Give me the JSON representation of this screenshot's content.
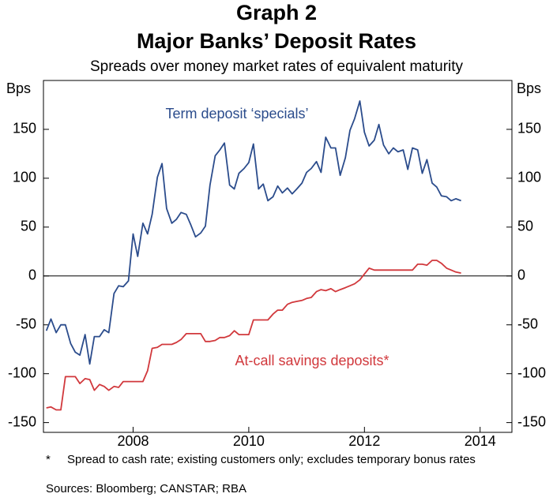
{
  "chart_data": {
    "type": "line",
    "title": "Graph 2",
    "subtitle": "Major Banks’ Deposit Rates",
    "description": "Spreads over money market rates of equivalent maturity",
    "ylabel": "Bps",
    "y2label": "Bps",
    "x": [
      2006.5,
      2006.58,
      2006.67,
      2006.75,
      2006.83,
      2006.92,
      2007,
      2007.08,
      2007.17,
      2007.25,
      2007.33,
      2007.42,
      2007.5,
      2007.58,
      2007.67,
      2007.75,
      2007.83,
      2007.92,
      2008,
      2008.08,
      2008.17,
      2008.25,
      2008.33,
      2008.42,
      2008.5,
      2008.58,
      2008.67,
      2008.75,
      2008.83,
      2008.92,
      2009,
      2009.08,
      2009.17,
      2009.25,
      2009.33,
      2009.42,
      2009.5,
      2009.58,
      2009.67,
      2009.75,
      2009.83,
      2009.92,
      2010,
      2010.08,
      2010.17,
      2010.25,
      2010.33,
      2010.42,
      2010.5,
      2010.58,
      2010.67,
      2010.75,
      2010.83,
      2010.92,
      2011,
      2011.08,
      2011.17,
      2011.25,
      2011.33,
      2011.42,
      2011.5,
      2011.58,
      2011.67,
      2011.75,
      2011.83,
      2011.92,
      2012,
      2012.08,
      2012.17,
      2012.25,
      2012.33,
      2012.42,
      2012.5,
      2012.58,
      2012.67,
      2012.75,
      2012.83,
      2012.92,
      2013,
      2013.08,
      2013.17,
      2013.25,
      2013.33,
      2013.42,
      2013.5,
      2013.58,
      2013.67
    ],
    "series": [
      {
        "name": "Term deposit ‘specials’",
        "color": "#2b4c8c",
        "values": [
          -56,
          -44,
          -58,
          -50,
          -50,
          -69,
          -78,
          -81,
          -60,
          -90,
          -62,
          -62,
          -55,
          -58,
          -18,
          -10,
          -11,
          -5,
          43,
          20,
          54,
          43,
          63,
          101,
          115,
          69,
          54,
          58,
          65,
          63,
          52,
          40,
          44,
          51,
          93,
          123,
          129,
          136,
          93,
          89,
          105,
          110,
          116,
          135,
          89,
          94,
          77,
          81,
          92,
          85,
          90,
          84,
          89,
          95,
          106,
          110,
          117,
          106,
          142,
          131,
          131,
          103,
          121,
          149,
          161,
          179,
          147,
          133,
          139,
          155,
          134,
          125,
          131,
          127,
          129,
          109,
          131,
          129,
          105,
          119,
          95,
          91,
          82,
          81,
          77,
          79,
          77
        ]
      },
      {
        "name": "At-call savings deposits*",
        "color": "#d1383c",
        "values": [
          -135,
          -134,
          -137,
          -137,
          -103,
          -103,
          -103,
          -110,
          -105,
          -106,
          -117,
          -111,
          -113,
          -117,
          -113,
          -114,
          -108,
          -108,
          -108,
          -108,
          -108,
          -97,
          -74,
          -73,
          -70,
          -70,
          -70,
          -68,
          -65,
          -59,
          -59,
          -59,
          -59,
          -67,
          -67,
          -66,
          -63,
          -63,
          -61,
          -56,
          -60,
          -60,
          -60,
          -45,
          -45,
          -45,
          -45,
          -39,
          -35,
          -35,
          -29,
          -27,
          -26,
          -25,
          -23,
          -22,
          -16,
          -14,
          -15,
          -13,
          -16,
          -14,
          -12,
          -10,
          -8,
          -4,
          2,
          8,
          6,
          6,
          6,
          6,
          6,
          6,
          6,
          6,
          6,
          12,
          12,
          11,
          16,
          16,
          13,
          8,
          6,
          4,
          3
        ]
      }
    ],
    "xlim": [
      2006.45,
      2014.55
    ],
    "xticks": [
      2008,
      2010,
      2012,
      2014
    ],
    "ylim": [
      -160,
      200
    ],
    "yticks": [
      -150,
      -100,
      -50,
      0,
      50,
      100,
      150
    ],
    "y2lim": [
      -160,
      200
    ],
    "y2ticks": [
      -150,
      -100,
      -50,
      0,
      50,
      100,
      150
    ],
    "footnote_marker": "*",
    "footnote": "Spread to cash rate; existing customers only; excludes temporary bonus rates",
    "sources": "Sources: Bloomberg; CANSTAR; RBA"
  }
}
